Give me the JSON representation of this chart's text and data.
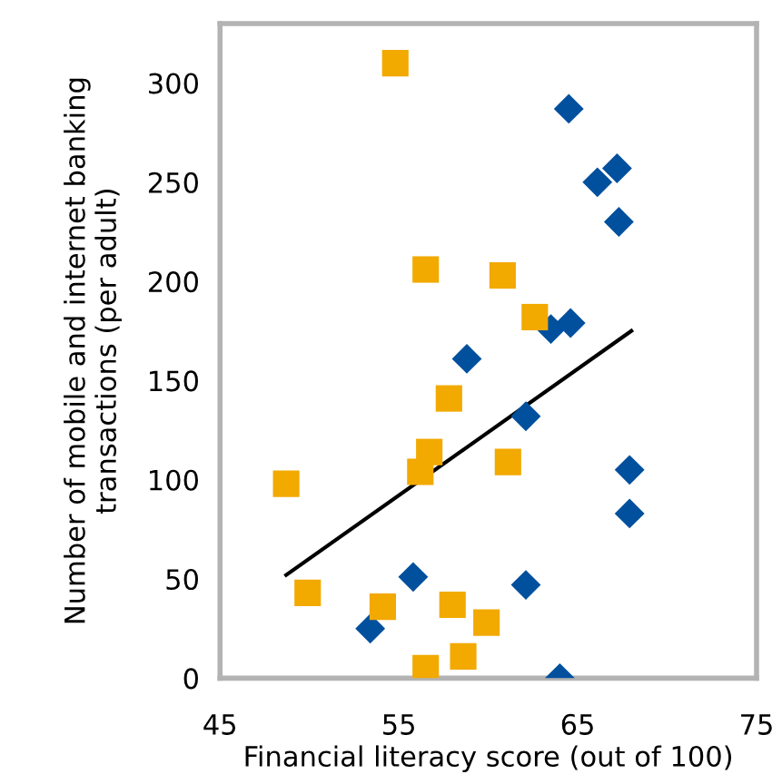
{
  "chart_data": {
    "type": "scatter",
    "xlabel": "Financial literacy score (out of 100)",
    "ylabel": "Number of mobile and internet banking\ntransactions (per adult)",
    "xlim": [
      45,
      75
    ],
    "ylim": [
      0,
      330
    ],
    "xticks": [
      45,
      55,
      65,
      75
    ],
    "yticks": [
      0,
      50,
      100,
      150,
      200,
      250,
      300
    ],
    "grid": false,
    "legend": false,
    "series": [
      {
        "color": "#00509e",
        "marker": "diamond",
        "x": [
          64.5,
          67.2,
          66.1,
          67.3,
          63.5,
          64.6,
          58.8,
          62.1,
          67.9,
          67.9,
          55.8,
          62.1,
          53.4,
          64.0
        ],
        "values": [
          287,
          257,
          250,
          230,
          176,
          179,
          161,
          132,
          105,
          83,
          51,
          47,
          25,
          0
        ]
      },
      {
        "color": "#f2a900",
        "marker": "square",
        "x": [
          54.8,
          56.5,
          60.8,
          62.6,
          57.8,
          56.7,
          56.2,
          61.1,
          48.7,
          49.9,
          54.1,
          58.0,
          59.9,
          58.6,
          56.5
        ],
        "values": [
          310,
          206,
          203,
          182,
          141,
          114,
          104,
          109,
          98,
          43,
          36,
          37,
          28,
          11,
          5
        ]
      },
      {
        "type": "line",
        "color": "#000000",
        "marker": "none",
        "x": [
          48.7,
          68.0
        ],
        "values": [
          52,
          175
        ]
      }
    ]
  }
}
